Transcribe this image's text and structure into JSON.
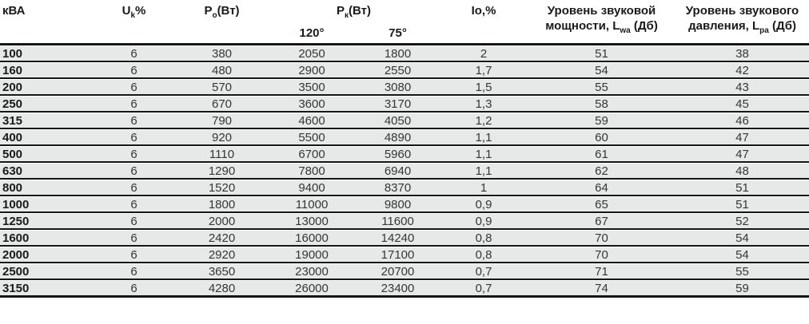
{
  "table": {
    "columns": {
      "kva": "кВА",
      "uk": {
        "base": "U",
        "sub": "k",
        "rest": "%"
      },
      "po": {
        "base": "P",
        "sub": "o",
        "rest": "(Вт)"
      },
      "pk": {
        "base": "P",
        "sub": "к",
        "rest": "(Вт)"
      },
      "pk_sub_120": "120°",
      "pk_sub_75": "75°",
      "io": "Io,%",
      "lwa": {
        "line1": "Уровень звуковой",
        "line2_pre": "мощности, L",
        "sub": "wa",
        "line2_post": " (Дб)"
      },
      "lpa": {
        "line1": "Уровень звукового",
        "line2_pre": "давления, L",
        "sub": "pa",
        "line2_post": " (Дб)"
      }
    },
    "rows": [
      [
        "100",
        "6",
        "380",
        "2050",
        "1800",
        "2",
        "51",
        "38"
      ],
      [
        "160",
        "6",
        "480",
        "2900",
        "2550",
        "1,7",
        "54",
        "42"
      ],
      [
        "200",
        "6",
        "570",
        "3500",
        "3080",
        "1,5",
        "55",
        "43"
      ],
      [
        "250",
        "6",
        "670",
        "3600",
        "3170",
        "1,3",
        "58",
        "45"
      ],
      [
        "315",
        "6",
        "790",
        "4600",
        "4050",
        "1,2",
        "59",
        "46"
      ],
      [
        "400",
        "6",
        "920",
        "5500",
        "4890",
        "1,1",
        "60",
        "47"
      ],
      [
        "500",
        "6",
        "1110",
        "6700",
        "5960",
        "1,1",
        "61",
        "47"
      ],
      [
        "630",
        "6",
        "1290",
        "7800",
        "6940",
        "1,1",
        "62",
        "48"
      ],
      [
        "800",
        "6",
        "1520",
        "9400",
        "8370",
        "1",
        "64",
        "51"
      ],
      [
        "1000",
        "6",
        "1800",
        "11000",
        "9800",
        "0,9",
        "65",
        "51"
      ],
      [
        "1250",
        "6",
        "2000",
        "13000",
        "11600",
        "0,9",
        "67",
        "52"
      ],
      [
        "1600",
        "6",
        "2420",
        "16000",
        "14240",
        "0,8",
        "70",
        "54"
      ],
      [
        "2000",
        "6",
        "2920",
        "19000",
        "17100",
        "0,8",
        "70",
        "54"
      ],
      [
        "2500",
        "6",
        "3650",
        "23000",
        "20700",
        "0,7",
        "71",
        "55"
      ],
      [
        "3150",
        "6",
        "4280",
        "26000",
        "23400",
        "0,7",
        "74",
        "59"
      ]
    ]
  },
  "colors": {
    "row_bg": "#e7e8e8",
    "rule": "#161616",
    "text": "#363636",
    "bold_text": "#1a1a1a",
    "header_bg": "#ffffff"
  }
}
